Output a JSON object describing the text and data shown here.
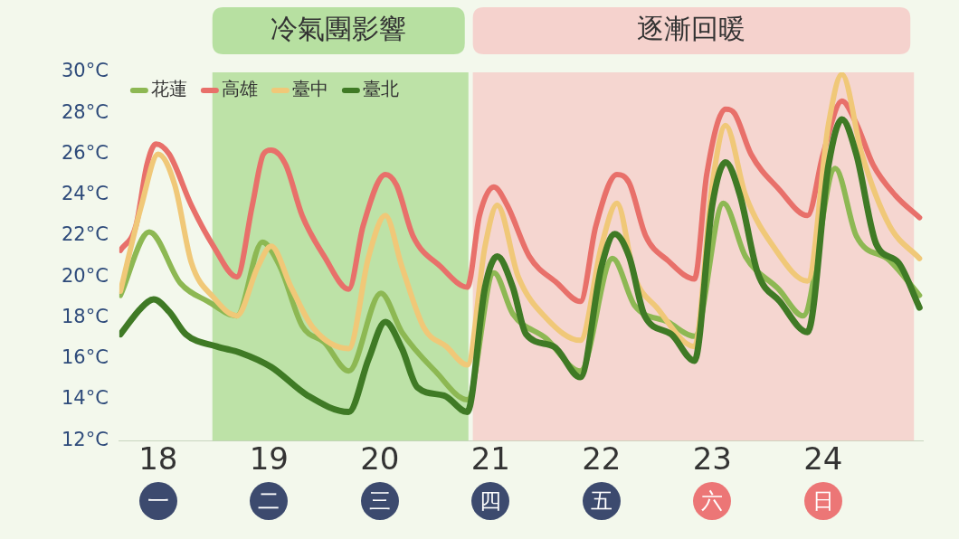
{
  "chart_data": {
    "type": "line",
    "xlim": [
      17.65,
      24.9
    ],
    "xticks": [
      18,
      19,
      20,
      21,
      22,
      23,
      24
    ],
    "ylim": [
      12,
      30
    ],
    "yticks": [
      {
        "value": 12,
        "label": "12°C"
      },
      {
        "value": 14,
        "label": "14°C"
      },
      {
        "value": 16,
        "label": "16°C"
      },
      {
        "value": 18,
        "label": "18°C"
      },
      {
        "value": 20,
        "label": "20°C"
      },
      {
        "value": 22,
        "label": "22°C"
      },
      {
        "value": 24,
        "label": "24°C"
      },
      {
        "value": 26,
        "label": "26°C"
      },
      {
        "value": 28,
        "label": "28°C"
      },
      {
        "value": 30,
        "label": "30°C"
      }
    ],
    "grid": false,
    "legend": "top left",
    "marker": "none",
    "line_style": "solid",
    "bands": [
      {
        "axis": "x",
        "from": 18.49,
        "to": 20.8,
        "label": "冷氣團影響",
        "color": "#8fd070"
      },
      {
        "axis": "x",
        "from": 20.84,
        "to": 24.82,
        "label": "逐漸回暖",
        "color": "#f6b9b9"
      }
    ],
    "annotations": [
      "一",
      "二",
      "三",
      "四",
      "五",
      "六",
      "日"
    ],
    "series": [
      {
        "name": "花蓮",
        "color": "#8db853",
        "x": [
          17.66,
          17.92,
          18.2,
          18.45,
          18.71,
          18.94,
          19.1,
          19.3,
          19.5,
          19.72,
          20.01,
          20.2,
          20.5,
          20.79,
          21.03,
          21.2,
          21.5,
          21.81,
          22.1,
          22.3,
          22.6,
          22.84,
          23.1,
          23.3,
          23.6,
          23.82,
          24.11,
          24.3,
          24.6,
          24.87
        ],
        "values": [
          19.1,
          22.2,
          19.7,
          18.8,
          18.1,
          21.7,
          20.5,
          17.6,
          16.8,
          15.4,
          19.2,
          17.3,
          15.4,
          14.0,
          20.2,
          18.2,
          17.0,
          15.4,
          20.9,
          18.6,
          17.8,
          17.1,
          23.6,
          21.0,
          19.4,
          18.1,
          25.3,
          22.0,
          20.8,
          19.1
        ]
      },
      {
        "name": "高雄",
        "color": "#e8706a",
        "x": [
          17.66,
          17.8,
          17.9,
          17.98,
          18.1,
          18.3,
          18.5,
          18.71,
          18.85,
          18.95,
          19.02,
          19.15,
          19.3,
          19.5,
          19.72,
          19.85,
          20.05,
          20.15,
          20.3,
          20.55,
          20.79,
          20.9,
          21.03,
          21.15,
          21.35,
          21.6,
          21.81,
          21.95,
          22.14,
          22.25,
          22.4,
          22.6,
          22.84,
          22.95,
          23.12,
          23.2,
          23.35,
          23.6,
          23.86,
          24.0,
          24.17,
          24.3,
          24.45,
          24.65,
          24.87
        ],
        "values": [
          21.3,
          22.5,
          25.5,
          26.5,
          26.0,
          23.5,
          21.5,
          20.0,
          23.5,
          26.0,
          26.2,
          25.5,
          23.0,
          21.0,
          19.4,
          22.5,
          25.0,
          24.5,
          22.0,
          20.5,
          19.5,
          23.0,
          24.4,
          23.5,
          21.0,
          19.7,
          18.8,
          22.5,
          25.0,
          24.6,
          22.0,
          20.8,
          19.9,
          25.0,
          28.2,
          28.0,
          26.0,
          24.3,
          23.0,
          26.0,
          28.6,
          27.5,
          25.5,
          24.0,
          22.9
        ]
      },
      {
        "name": "臺中",
        "color": "#f0c878",
        "x": [
          17.66,
          17.85,
          18.0,
          18.15,
          18.3,
          18.5,
          18.71,
          18.9,
          19.02,
          19.2,
          19.4,
          19.72,
          19.9,
          20.05,
          20.2,
          20.4,
          20.6,
          20.79,
          20.95,
          21.06,
          21.25,
          21.5,
          21.81,
          22.0,
          22.14,
          22.3,
          22.5,
          22.84,
          23.0,
          23.12,
          23.3,
          23.55,
          23.86,
          24.05,
          24.17,
          24.35,
          24.6,
          24.87
        ],
        "values": [
          19.3,
          23.5,
          26.0,
          24.5,
          20.7,
          19.0,
          18.1,
          20.5,
          21.5,
          19.5,
          17.5,
          16.5,
          21.0,
          23.0,
          20.5,
          17.5,
          16.6,
          15.7,
          21.5,
          23.5,
          20.0,
          18.0,
          16.9,
          21.5,
          23.6,
          20.0,
          18.5,
          16.6,
          24.5,
          27.4,
          24.0,
          21.5,
          19.8,
          27.5,
          29.9,
          26.0,
          22.5,
          20.9
        ]
      },
      {
        "name": "臺北",
        "color": "#3f7a25",
        "x": [
          17.66,
          17.85,
          17.96,
          18.1,
          18.25,
          18.53,
          18.74,
          19.02,
          19.35,
          19.72,
          19.9,
          20.05,
          20.2,
          20.34,
          20.58,
          20.79,
          20.95,
          21.06,
          21.2,
          21.32,
          21.57,
          21.81,
          22.0,
          22.12,
          22.25,
          22.39,
          22.63,
          22.84,
          23.0,
          23.12,
          23.25,
          23.41,
          23.61,
          23.86,
          24.05,
          24.17,
          24.3,
          24.48,
          24.68,
          24.87
        ],
        "values": [
          17.2,
          18.5,
          18.9,
          18.3,
          17.2,
          16.6,
          16.3,
          15.6,
          14.2,
          13.4,
          16.0,
          17.8,
          16.5,
          14.6,
          14.2,
          13.4,
          19.5,
          21.0,
          19.5,
          17.2,
          16.6,
          15.1,
          20.5,
          22.1,
          21.0,
          18.1,
          17.2,
          15.9,
          23.5,
          25.6,
          24.0,
          20.2,
          18.8,
          17.3,
          25.5,
          27.7,
          26.0,
          21.6,
          20.7,
          18.5
        ]
      }
    ]
  }
}
